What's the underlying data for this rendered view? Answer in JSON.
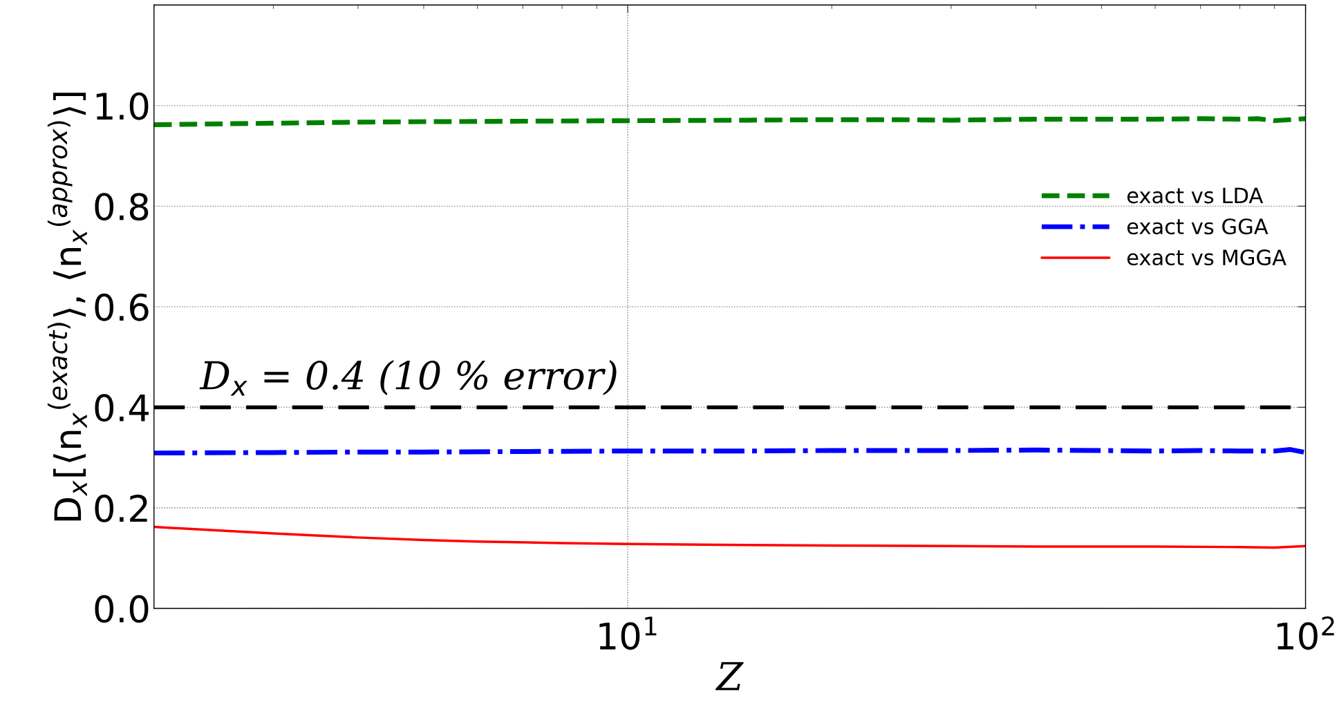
{
  "chart_data": {
    "type": "line",
    "xlabel": "Z",
    "ylabel": "D$_{x}$[⟨n$_{x}$$^{(exact)}$⟩, ⟨n$_{x}$$^{(approx)}$⟩]",
    "log": "x",
    "xlim": [
      2,
      100
    ],
    "ylim": [
      0,
      1.2
    ],
    "xticks": [
      {
        "value": 10,
        "label": "10$^{1}$"
      },
      {
        "value": 100,
        "label": "10$^{2}$"
      }
    ],
    "yticks": [
      {
        "value": 0,
        "label": "0.0"
      },
      0.2,
      0.4,
      0.6,
      0.8,
      {
        "value": 1,
        "label": "1.0"
      }
    ],
    "grid": true,
    "legend": "center right",
    "ref_lines": [
      {
        "axis": "y",
        "value": 0.4,
        "label": "D$_{x}$ = 0.4 (10 % error)",
        "color": "#000000",
        "line_style": "dashed"
      }
    ],
    "series": [
      {
        "name": "exact vs LDA",
        "color": "#008000",
        "line_style": "dashed",
        "x": [
          2,
          3,
          4,
          5,
          7,
          10,
          15,
          20,
          25,
          30,
          40,
          50,
          60,
          70,
          80,
          85,
          90,
          100
        ],
        "values": [
          0.962,
          0.965,
          0.967,
          0.968,
          0.969,
          0.97,
          0.971,
          0.972,
          0.972,
          0.971,
          0.973,
          0.973,
          0.973,
          0.974,
          0.973,
          0.974,
          0.97,
          0.974
        ]
      },
      {
        "name": "exact vs GGA",
        "color": "#0000ff",
        "line_style": "dashdot",
        "x": [
          2,
          3,
          4,
          5,
          7,
          10,
          15,
          20,
          25,
          30,
          40,
          50,
          60,
          70,
          80,
          90,
          95,
          100
        ],
        "values": [
          0.309,
          0.31,
          0.311,
          0.311,
          0.312,
          0.313,
          0.313,
          0.314,
          0.314,
          0.314,
          0.315,
          0.314,
          0.313,
          0.314,
          0.313,
          0.313,
          0.316,
          0.31
        ]
      },
      {
        "name": "exact vs MGGA",
        "color": "#ff0000",
        "line_style": "solid",
        "x": [
          2,
          2.5,
          3,
          4,
          5,
          6,
          8,
          10,
          15,
          20,
          30,
          40,
          60,
          80,
          90,
          100
        ],
        "values": [
          0.162,
          0.155,
          0.149,
          0.141,
          0.136,
          0.133,
          0.13,
          0.128,
          0.126,
          0.125,
          0.124,
          0.123,
          0.123,
          0.122,
          0.121,
          0.124
        ]
      }
    ]
  }
}
